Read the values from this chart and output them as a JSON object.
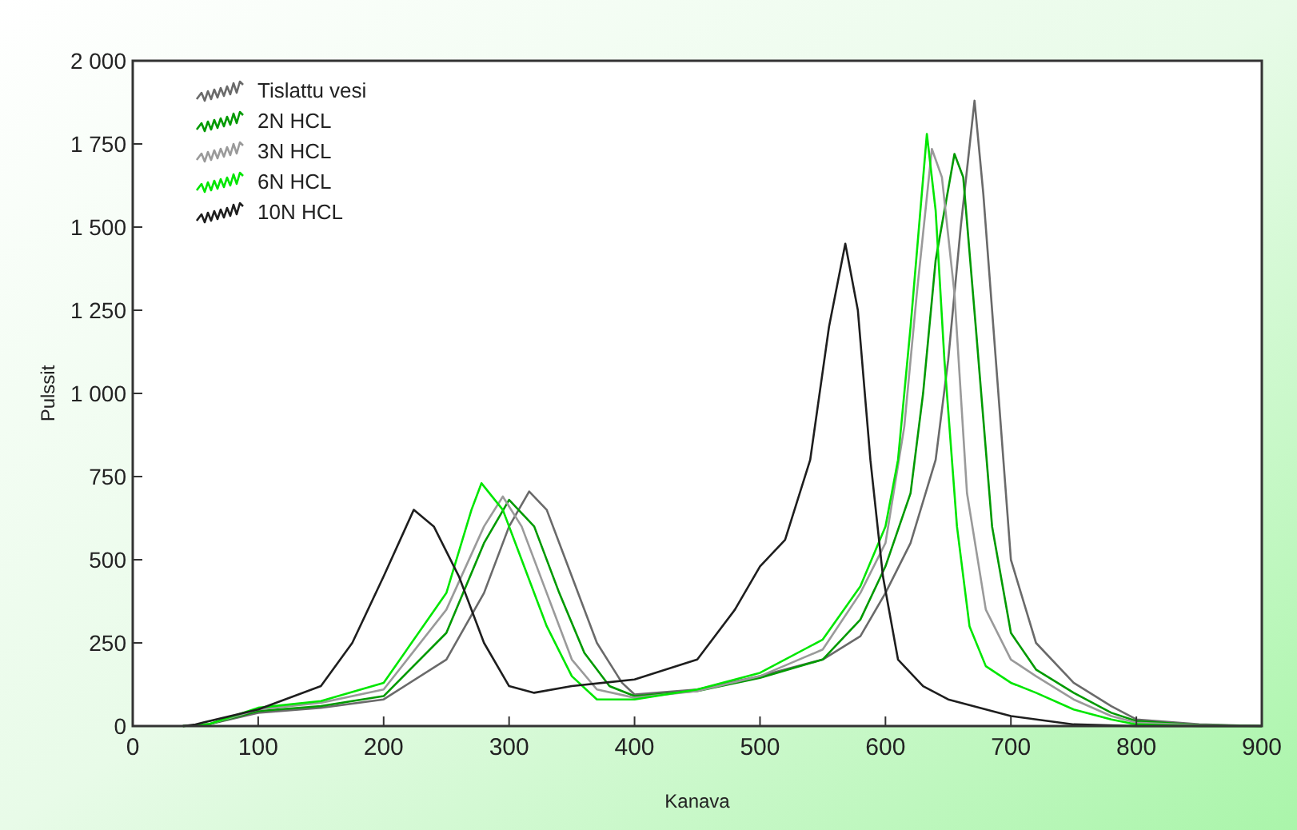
{
  "chart_data": {
    "type": "line",
    "xlabel": "Kanava",
    "ylabel": "Pulssit",
    "xlim": [
      0,
      900
    ],
    "ylim": [
      0,
      2000
    ],
    "xticks": [
      0,
      100,
      200,
      300,
      400,
      500,
      600,
      700,
      800,
      900
    ],
    "yticks": [
      0,
      250,
      500,
      750,
      {
        "value": 1000,
        "label": "1 000"
      },
      {
        "value": 1250,
        "label": "1 250"
      },
      {
        "value": 1500,
        "label": "1 500"
      },
      {
        "value": 1750,
        "label": "1 750"
      },
      {
        "value": 2000,
        "label": "2 000"
      }
    ],
    "legend": "top left",
    "grid": false,
    "series": [
      {
        "name": "Tislattu vesi",
        "color": "#6a6a6a",
        "x": [
          40,
          60,
          100,
          150,
          200,
          250,
          280,
          300,
          316,
          330,
          350,
          370,
          390,
          400,
          450,
          500,
          550,
          580,
          600,
          620,
          640,
          650,
          660,
          671,
          678,
          688,
          700,
          720,
          750,
          780,
          800,
          850,
          900
        ],
        "values": [
          0,
          5,
          40,
          55,
          80,
          200,
          400,
          600,
          705,
          650,
          450,
          250,
          130,
          95,
          110,
          150,
          200,
          270,
          400,
          550,
          800,
          1100,
          1500,
          1880,
          1600,
          1100,
          500,
          250,
          130,
          60,
          20,
          5,
          0
        ]
      },
      {
        "name": "2N HCL",
        "color": "#009a00",
        "x": [
          40,
          60,
          100,
          150,
          200,
          250,
          280,
          300,
          320,
          340,
          360,
          380,
          400,
          450,
          500,
          550,
          580,
          600,
          620,
          630,
          640,
          655,
          662,
          672,
          685,
          700,
          720,
          750,
          780,
          800,
          850,
          900
        ],
        "values": [
          0,
          5,
          45,
          60,
          90,
          280,
          550,
          680,
          600,
          400,
          220,
          120,
          90,
          105,
          145,
          200,
          320,
          480,
          700,
          1000,
          1400,
          1720,
          1650,
          1200,
          600,
          280,
          170,
          100,
          40,
          15,
          3,
          0
        ]
      },
      {
        "name": "3N HCL",
        "color": "#9a9a9a",
        "x": [
          40,
          60,
          100,
          150,
          200,
          250,
          280,
          295,
          310,
          330,
          350,
          370,
          400,
          450,
          500,
          550,
          580,
          600,
          615,
          625,
          637,
          645,
          655,
          665,
          680,
          700,
          720,
          750,
          780,
          800,
          850,
          900
        ],
        "values": [
          0,
          5,
          50,
          70,
          110,
          350,
          600,
          690,
          600,
          400,
          200,
          110,
          85,
          105,
          150,
          230,
          400,
          550,
          900,
          1300,
          1735,
          1650,
          1300,
          700,
          350,
          200,
          150,
          80,
          30,
          10,
          2,
          0
        ]
      },
      {
        "name": "6N HCL",
        "color": "#00e600",
        "x": [
          40,
          60,
          100,
          150,
          200,
          250,
          270,
          278,
          295,
          310,
          330,
          350,
          370,
          400,
          450,
          500,
          550,
          580,
          600,
          610,
          620,
          633,
          640,
          647,
          657,
          667,
          680,
          700,
          720,
          750,
          780,
          800,
          850,
          900
        ],
        "values": [
          0,
          5,
          55,
          75,
          130,
          400,
          650,
          730,
          650,
          500,
          300,
          150,
          80,
          80,
          110,
          160,
          260,
          420,
          600,
          800,
          1200,
          1780,
          1550,
          1100,
          600,
          300,
          180,
          130,
          100,
          50,
          20,
          5,
          0,
          0
        ]
      },
      {
        "name": "10N HCL",
        "color": "#1e1e1e",
        "x": [
          40,
          50,
          100,
          150,
          175,
          200,
          224,
          240,
          260,
          280,
          300,
          320,
          350,
          400,
          450,
          480,
          500,
          520,
          540,
          555,
          568,
          578,
          588,
          598,
          610,
          630,
          650,
          700,
          750,
          800,
          900
        ],
        "values": [
          0,
          5,
          50,
          120,
          250,
          450,
          650,
          600,
          450,
          250,
          120,
          100,
          120,
          140,
          200,
          350,
          480,
          560,
          800,
          1200,
          1450,
          1250,
          800,
          450,
          200,
          120,
          80,
          30,
          5,
          0,
          0
        ]
      }
    ]
  }
}
